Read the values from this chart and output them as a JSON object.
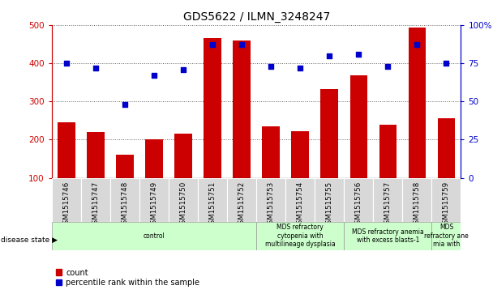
{
  "title": "GDS5622 / ILMN_3248247",
  "samples": [
    "GSM1515746",
    "GSM1515747",
    "GSM1515748",
    "GSM1515749",
    "GSM1515750",
    "GSM1515751",
    "GSM1515752",
    "GSM1515753",
    "GSM1515754",
    "GSM1515755",
    "GSM1515756",
    "GSM1515757",
    "GSM1515758",
    "GSM1515759"
  ],
  "counts": [
    245,
    220,
    160,
    200,
    215,
    465,
    460,
    235,
    222,
    332,
    368,
    240,
    493,
    256
  ],
  "percentile_ranks": [
    75,
    72,
    48,
    67,
    71,
    87,
    87,
    73,
    72,
    80,
    81,
    73,
    87,
    75
  ],
  "ylim_left": [
    100,
    500
  ],
  "ylim_right": [
    0,
    100
  ],
  "yticks_left": [
    100,
    200,
    300,
    400,
    500
  ],
  "yticks_right": [
    0,
    25,
    50,
    75,
    100
  ],
  "bar_color": "#cc0000",
  "dot_color": "#0000cc",
  "disease_groups": [
    {
      "label": "control",
      "start": 0,
      "end": 7
    },
    {
      "label": "MDS refractory\ncytopenia with\nmultilineage dysplasia",
      "start": 7,
      "end": 10
    },
    {
      "label": "MDS refractory anemia\nwith excess blasts-1",
      "start": 10,
      "end": 13
    },
    {
      "label": "MDS\nrefractory ane\nmia with",
      "start": 13,
      "end": 14
    }
  ],
  "bg_color": "#d8d8d8",
  "disease_bg_color": "#ccffcc",
  "plot_bg_color": "#ffffff",
  "grid_color": "#606060",
  "disease_state_label": "disease state"
}
